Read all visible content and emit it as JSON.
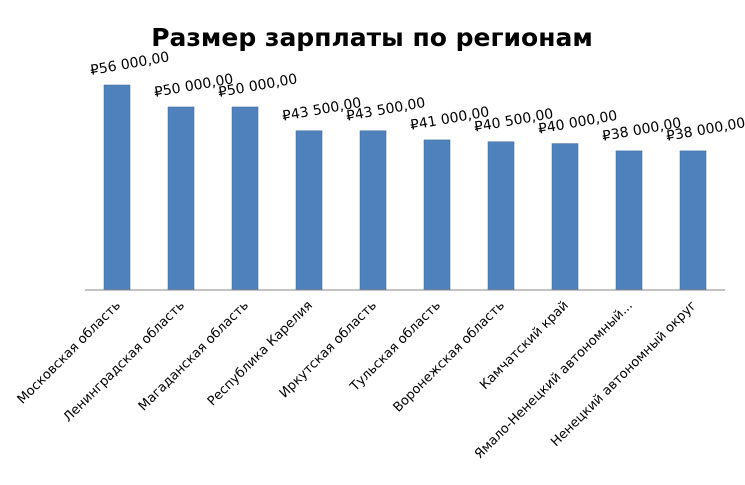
{
  "chart_data": {
    "type": "bar",
    "title": "Размер зарплаты по регионам",
    "xlabel": "",
    "ylabel": "",
    "categories": [
      "Московская область",
      "Ленинградская область",
      "Магаданская область",
      "Республика Карелия",
      "Иркутская область",
      "Тульская область",
      "Воронежская область",
      "Камчатский край",
      "Ямало-Ненецкий автономный...",
      "Ненецкий автономный округ"
    ],
    "values": [
      56000,
      50000,
      50000,
      43500,
      43500,
      41000,
      40500,
      40000,
      38000,
      38000
    ],
    "data_labels": [
      "₽56 000,00",
      "₽50 000,00",
      "₽50 000,00",
      "₽43 500,00",
      "₽43 500,00",
      "₽41 000,00",
      "₽40 500,00",
      "₽40 000,00",
      "₽38 000,00",
      "₽38 000,00"
    ],
    "ylim": [
      0,
      56000
    ],
    "grid": false,
    "legend": "none",
    "bar_color": "#4f81bd",
    "bar_edge_color": "#3b6797"
  }
}
